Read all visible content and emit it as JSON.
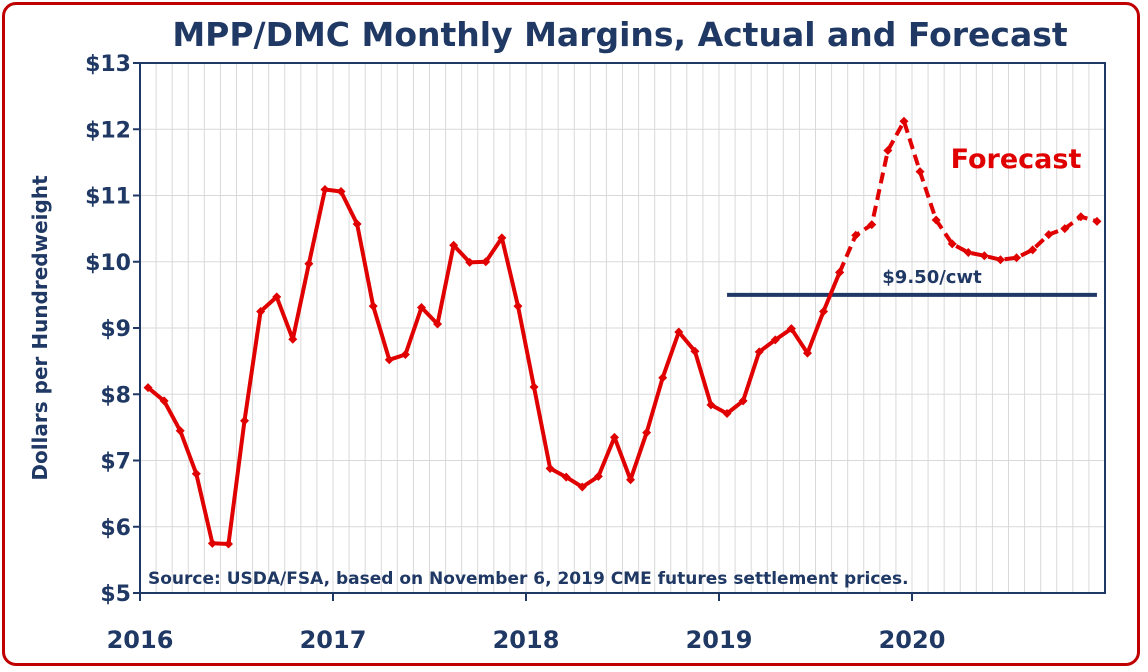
{
  "chart_data": {
    "type": "line",
    "title": "MPP/DMC Monthly Margins, Actual and Forecast",
    "ylabel": "Dollars per Hundredweight",
    "xlabel": "",
    "ylim": [
      5,
      13
    ],
    "y_ticks": [
      5,
      6,
      7,
      8,
      9,
      10,
      11,
      12,
      13
    ],
    "y_tick_labels": [
      "$5",
      "$6",
      "$7",
      "$8",
      "$9",
      "$10",
      "$11",
      "$12",
      "$13"
    ],
    "x_tick_labels": [
      "2016",
      "2017",
      "2018",
      "2019",
      "2020"
    ],
    "months_per_year": 12,
    "grid": true,
    "colors": {
      "series": "#e00000",
      "axis": "#1f3864",
      "grid": "#d9d9d9",
      "reference": "#1f3864"
    },
    "series": [
      {
        "name": "Actual",
        "style": "solid",
        "start_month": 0,
        "values": [
          8.1,
          7.9,
          7.45,
          6.8,
          5.75,
          5.74,
          7.6,
          9.25,
          9.47,
          8.83,
          9.97,
          11.09,
          11.06,
          10.57,
          9.33,
          8.52,
          8.6,
          9.31,
          9.06,
          10.25,
          9.99,
          10.0,
          10.36,
          9.33,
          8.11,
          6.88,
          6.75,
          6.6,
          6.76,
          7.35,
          6.71,
          7.42,
          8.25,
          8.94,
          8.65,
          7.84,
          7.71,
          7.9,
          8.64,
          8.82,
          8.99,
          8.62,
          9.25,
          9.84
        ]
      },
      {
        "name": "Forecast",
        "style": "dashed",
        "start_month": 43,
        "values": [
          9.84,
          10.4,
          10.56,
          11.68,
          12.12,
          11.36,
          10.63,
          10.27,
          10.14,
          10.09,
          10.03,
          10.06,
          10.18,
          10.41,
          10.5,
          10.68,
          10.61
        ]
      }
    ],
    "reference_line": {
      "value": 9.5,
      "label": "$9.50/cwt",
      "start_month": 36,
      "end_month": 59
    },
    "annotations": {
      "forecast_label": "Forecast",
      "source": "Source:  USDA/FSA, based on November 6, 2019 CME futures settlement prices."
    }
  }
}
